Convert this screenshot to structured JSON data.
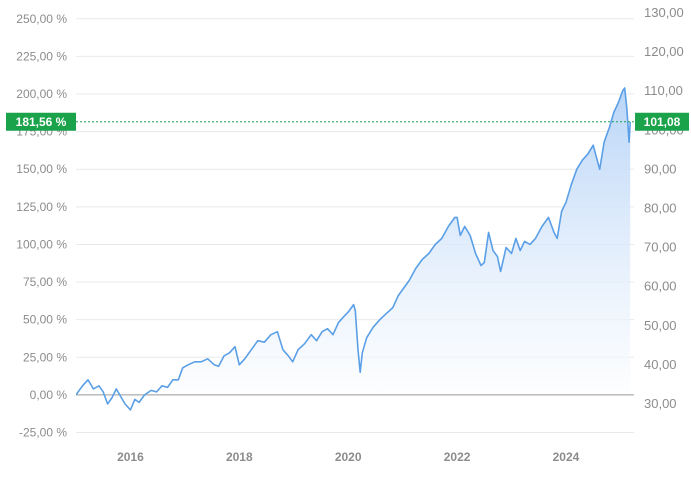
{
  "chart_data": {
    "type": "area",
    "title": "",
    "xlabel": "",
    "ylabel": "",
    "x_range": [
      2015.0,
      2025.25
    ],
    "x_ticks": [
      {
        "value": 2016,
        "label": "2016"
      },
      {
        "value": 2018,
        "label": "2018"
      },
      {
        "value": 2020,
        "label": "2020"
      },
      {
        "value": 2022,
        "label": "2022"
      },
      {
        "value": 2024,
        "label": "2024"
      }
    ],
    "y_left": {
      "unit": "percent",
      "range": [
        -30,
        262.5
      ],
      "ticks": [
        {
          "value": 250,
          "label": "250,00 %"
        },
        {
          "value": 225,
          "label": "225,00 %"
        },
        {
          "value": 200,
          "label": "200,00 %"
        },
        {
          "value": 175,
          "label": "175,00 %"
        },
        {
          "value": 150,
          "label": "150,00 %"
        },
        {
          "value": 125,
          "label": "125,00 %"
        },
        {
          "value": 100,
          "label": "100,00 %"
        },
        {
          "value": 75,
          "label": "75,00 %"
        },
        {
          "value": 50,
          "label": "50,00 %"
        },
        {
          "value": 25,
          "label": "25,00 %"
        },
        {
          "value": 0,
          "label": "0,00 %"
        },
        {
          "value": -25,
          "label": "-25,00 %"
        }
      ]
    },
    "y_right": {
      "unit": "price",
      "ticks": [
        {
          "value": 130,
          "label": "130,00"
        },
        {
          "value": 120,
          "label": "120,00"
        },
        {
          "value": 110,
          "label": "110,00"
        },
        {
          "value": 100,
          "label": "100,00"
        },
        {
          "value": 90,
          "label": "90,00"
        },
        {
          "value": 80,
          "label": "80,00"
        },
        {
          "value": 70,
          "label": "70,00"
        },
        {
          "value": 60,
          "label": "60,00"
        },
        {
          "value": 50,
          "label": "50,00"
        },
        {
          "value": 40,
          "label": "40,00"
        },
        {
          "value": 30,
          "label": "30,00"
        }
      ]
    },
    "baseline_value": 0,
    "current": {
      "percent": 181.56,
      "percent_label": "181,56 %",
      "price_label": "101,08"
    },
    "grid": true,
    "colors": {
      "line": "#5b9fe6",
      "fill_top": "#b9d5f7",
      "fill_bottom": "#ffffff",
      "badge": "#1aa34a",
      "marker_line": "#1aa34a",
      "grid": "#e9e9e9",
      "zero_line": "#9a9a9a"
    },
    "series": [
      {
        "points": [
          [
            2015.0,
            0
          ],
          [
            2015.12,
            6
          ],
          [
            2015.22,
            10
          ],
          [
            2015.32,
            4
          ],
          [
            2015.42,
            6
          ],
          [
            2015.5,
            2
          ],
          [
            2015.58,
            -6
          ],
          [
            2015.66,
            -2
          ],
          [
            2015.74,
            4
          ],
          [
            2015.82,
            -1
          ],
          [
            2015.9,
            -6
          ],
          [
            2016.0,
            -10
          ],
          [
            2016.08,
            -3
          ],
          [
            2016.16,
            -5
          ],
          [
            2016.26,
            0
          ],
          [
            2016.38,
            3
          ],
          [
            2016.48,
            2
          ],
          [
            2016.58,
            6
          ],
          [
            2016.68,
            5
          ],
          [
            2016.78,
            10
          ],
          [
            2016.88,
            10
          ],
          [
            2016.96,
            18
          ],
          [
            2017.06,
            20
          ],
          [
            2017.18,
            22
          ],
          [
            2017.3,
            22
          ],
          [
            2017.42,
            24
          ],
          [
            2017.54,
            20
          ],
          [
            2017.62,
            19
          ],
          [
            2017.72,
            26
          ],
          [
            2017.82,
            28
          ],
          [
            2017.92,
            32
          ],
          [
            2018.0,
            20
          ],
          [
            2018.1,
            24
          ],
          [
            2018.22,
            30
          ],
          [
            2018.34,
            36
          ],
          [
            2018.46,
            35
          ],
          [
            2018.58,
            40
          ],
          [
            2018.7,
            42
          ],
          [
            2018.8,
            30
          ],
          [
            2018.9,
            26
          ],
          [
            2018.98,
            22
          ],
          [
            2019.08,
            30
          ],
          [
            2019.2,
            34
          ],
          [
            2019.32,
            40
          ],
          [
            2019.42,
            36
          ],
          [
            2019.52,
            42
          ],
          [
            2019.62,
            44
          ],
          [
            2019.72,
            40
          ],
          [
            2019.82,
            48
          ],
          [
            2019.92,
            52
          ],
          [
            2020.0,
            55
          ],
          [
            2020.1,
            60
          ],
          [
            2020.13,
            56
          ],
          [
            2020.18,
            30
          ],
          [
            2020.22,
            15
          ],
          [
            2020.26,
            28
          ],
          [
            2020.34,
            38
          ],
          [
            2020.46,
            45
          ],
          [
            2020.58,
            50
          ],
          [
            2020.7,
            54
          ],
          [
            2020.82,
            58
          ],
          [
            2020.92,
            66
          ],
          [
            2021.0,
            70
          ],
          [
            2021.12,
            76
          ],
          [
            2021.24,
            84
          ],
          [
            2021.36,
            90
          ],
          [
            2021.48,
            94
          ],
          [
            2021.6,
            100
          ],
          [
            2021.72,
            104
          ],
          [
            2021.84,
            112
          ],
          [
            2021.96,
            118
          ],
          [
            2022.0,
            118
          ],
          [
            2022.06,
            106
          ],
          [
            2022.14,
            112
          ],
          [
            2022.24,
            106
          ],
          [
            2022.34,
            94
          ],
          [
            2022.44,
            86
          ],
          [
            2022.5,
            88
          ],
          [
            2022.58,
            108
          ],
          [
            2022.66,
            96
          ],
          [
            2022.74,
            92
          ],
          [
            2022.8,
            82
          ],
          [
            2022.9,
            98
          ],
          [
            2023.0,
            94
          ],
          [
            2023.08,
            104
          ],
          [
            2023.16,
            96
          ],
          [
            2023.24,
            102
          ],
          [
            2023.34,
            100
          ],
          [
            2023.44,
            104
          ],
          [
            2023.56,
            112
          ],
          [
            2023.68,
            118
          ],
          [
            2023.78,
            108
          ],
          [
            2023.84,
            104
          ],
          [
            2023.92,
            122
          ],
          [
            2024.0,
            128
          ],
          [
            2024.1,
            140
          ],
          [
            2024.2,
            150
          ],
          [
            2024.3,
            156
          ],
          [
            2024.4,
            160
          ],
          [
            2024.5,
            166
          ],
          [
            2024.56,
            158
          ],
          [
            2024.62,
            150
          ],
          [
            2024.7,
            168
          ],
          [
            2024.8,
            178
          ],
          [
            2024.88,
            188
          ],
          [
            2024.96,
            194
          ],
          [
            2025.04,
            202
          ],
          [
            2025.08,
            204
          ],
          [
            2025.12,
            190
          ],
          [
            2025.16,
            168
          ],
          [
            2025.18,
            181.56
          ]
        ]
      }
    ]
  }
}
